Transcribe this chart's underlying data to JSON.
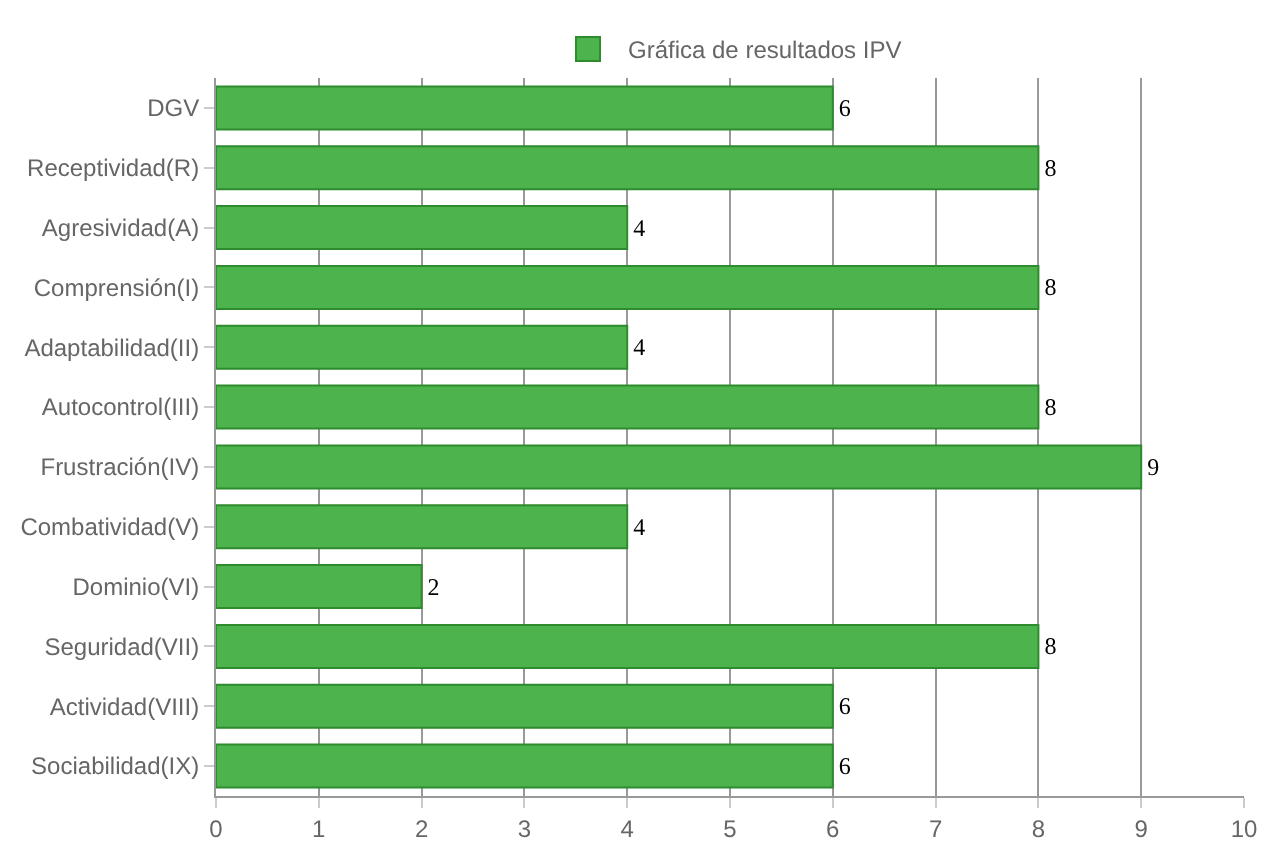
{
  "chart_data": {
    "type": "bar",
    "orientation": "horizontal",
    "categories": [
      "DGV",
      "Receptividad(R)",
      "Agresividad(A)",
      "Comprensión(I)",
      "Adaptabilidad(II)",
      "Autocontrol(III)",
      "Frustración(IV)",
      "Combatividad(V)",
      "Dominio(VI)",
      "Seguridad(VII)",
      "Actividad(VIII)",
      "Sociabilidad(IX)"
    ],
    "series": [
      {
        "name": "Gráfica de resultados IPV",
        "color": "#4db34d",
        "values": [
          6,
          8,
          4,
          8,
          4,
          8,
          9,
          4,
          2,
          8,
          6,
          6
        ]
      }
    ],
    "xlim": [
      0,
      10
    ],
    "xticks": [
      0,
      1,
      2,
      3,
      4,
      5,
      6,
      7,
      8,
      9,
      10
    ],
    "grid": "x",
    "legend": "top",
    "data_labels": true
  }
}
